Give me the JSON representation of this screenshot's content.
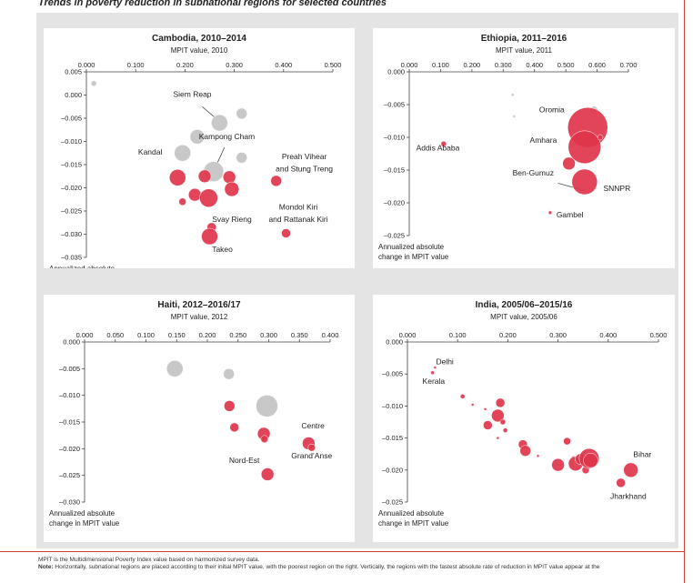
{
  "title": "Trends in poverty reduction in subnational regions for selected countries",
  "ylabel_text": "Annualized absolute change in MPIT value",
  "footnotes": {
    "line1": "MPIT is the Multidimensional Poverty Index value based on harmonized survey data.",
    "note_label": "Note:",
    "line2": "Horizontally, subnational regions are placed according to their initial MPIT value, with the poorest region on the right. Vertically, the regions with the fastest absolute rate of reduction in MPIT value appear at the"
  },
  "colors": {
    "significant": "#e0354b",
    "not_significant": "#c8c8c8",
    "text": "#222222"
  },
  "chart_data": [
    {
      "type": "scatter",
      "title": "Cambodia, 2010–2014",
      "xlabel": "MPIT value, 2010",
      "ylabel": [
        "Annualized absolute",
        "change in MPIT value"
      ],
      "xlim": [
        0,
        0.5
      ],
      "ylim": [
        -0.035,
        0.005
      ],
      "xticks": [
        "0.000",
        "0.100",
        "0.200",
        "0.300",
        "0.400",
        "0.500"
      ],
      "yticks": [
        "0.005",
        "0.000",
        "–0.005",
        "–0.010",
        "–0.015",
        "–0.020",
        "–0.025",
        "–0.030",
        "–0.035"
      ],
      "points": [
        {
          "x": 0.015,
          "y": 0.0025,
          "r": 3,
          "sig": false
        },
        {
          "x": 0.27,
          "y": -0.006,
          "r": 9,
          "sig": false
        },
        {
          "x": 0.315,
          "y": -0.004,
          "r": 6,
          "sig": false
        },
        {
          "x": 0.225,
          "y": -0.009,
          "r": 8,
          "sig": false
        },
        {
          "x": 0.195,
          "y": -0.0125,
          "r": 9,
          "sig": false
        },
        {
          "x": 0.258,
          "y": -0.0165,
          "r": 11,
          "sig": false
        },
        {
          "x": 0.315,
          "y": -0.0135,
          "r": 6,
          "sig": false
        },
        {
          "x": 0.185,
          "y": -0.0178,
          "r": 9,
          "sig": true
        },
        {
          "x": 0.24,
          "y": -0.0175,
          "r": 7,
          "sig": true
        },
        {
          "x": 0.29,
          "y": -0.0177,
          "r": 7,
          "sig": true
        },
        {
          "x": 0.295,
          "y": -0.0203,
          "r": 8,
          "sig": true
        },
        {
          "x": 0.22,
          "y": -0.0215,
          "r": 7,
          "sig": true
        },
        {
          "x": 0.248,
          "y": -0.0222,
          "r": 10,
          "sig": true
        },
        {
          "x": 0.195,
          "y": -0.023,
          "r": 4,
          "sig": true
        },
        {
          "x": 0.254,
          "y": -0.0285,
          "r": 5,
          "sig": true
        },
        {
          "x": 0.25,
          "y": -0.0305,
          "r": 9,
          "sig": true
        },
        {
          "x": 0.385,
          "y": -0.0185,
          "r": 6,
          "sig": true
        },
        {
          "x": 0.405,
          "y": -0.0298,
          "r": 5,
          "sig": true
        }
      ],
      "labels": [
        {
          "text": "Siem Reap",
          "x": 0.215,
          "y": -0.0004,
          "anchor": "middle"
        },
        {
          "text": "Kampong Cham",
          "x": 0.285,
          "y": -0.0095,
          "anchor": "middle"
        },
        {
          "text": "Kandal",
          "x": 0.105,
          "y": -0.0128,
          "anchor": "start"
        },
        {
          "text": "Preah Vihear",
          "x": 0.442,
          "y": -0.0138,
          "anchor": "middle"
        },
        {
          "text": "and Stung Treng",
          "x": 0.442,
          "y": -0.0165,
          "anchor": "middle"
        },
        {
          "text": "Mondol Kiri",
          "x": 0.43,
          "y": -0.0247,
          "anchor": "middle"
        },
        {
          "text": "and Rattanak Kiri",
          "x": 0.43,
          "y": -0.0274,
          "anchor": "middle"
        },
        {
          "text": "Svay Rieng",
          "x": 0.255,
          "y": -0.0274,
          "anchor": "start"
        },
        {
          "text": "Takeo",
          "x": 0.255,
          "y": -0.0338,
          "anchor": "start"
        }
      ],
      "leaders": [
        {
          "x1": 0.235,
          "y1": -0.0025,
          "x2": 0.268,
          "y2": -0.0055
        },
        {
          "x1": 0.28,
          "y1": -0.0113,
          "x2": 0.262,
          "y2": -0.0155
        }
      ]
    },
    {
      "type": "scatter",
      "title": "Ethiopia, 2011–2016",
      "xlabel": "MPIT value, 2011",
      "ylabel": [
        "Annualized absolute",
        "change in MPIT value"
      ],
      "xlim": [
        0,
        0.7
      ],
      "ylim": [
        -0.025,
        0.0
      ],
      "xticks": [
        "0.000",
        "0.100",
        "0.200",
        "0.300",
        "0.400",
        "0.500",
        "0.600",
        "0.700"
      ],
      "yticks": [
        "0.000",
        "–0.005",
        "–0.010",
        "–0.015",
        "–0.020",
        "–0.025"
      ],
      "points": [
        {
          "x": 0.33,
          "y": -0.0035,
          "r": 1.5,
          "sig": false
        },
        {
          "x": 0.335,
          "y": -0.0068,
          "r": 1.5,
          "sig": false
        },
        {
          "x": 0.59,
          "y": -0.0058,
          "r": 4,
          "sig": false
        },
        {
          "x": 0.57,
          "y": -0.0085,
          "r": 22,
          "sig": true
        },
        {
          "x": 0.56,
          "y": -0.0115,
          "r": 18,
          "sig": true
        },
        {
          "x": 0.61,
          "y": -0.01,
          "r": 3,
          "sig": true
        },
        {
          "x": 0.51,
          "y": -0.014,
          "r": 7,
          "sig": true
        },
        {
          "x": 0.56,
          "y": -0.0168,
          "r": 14,
          "sig": true
        },
        {
          "x": 0.11,
          "y": -0.011,
          "r": 3,
          "sig": true
        },
        {
          "x": 0.45,
          "y": -0.0215,
          "r": 2,
          "sig": true
        }
      ],
      "labels": [
        {
          "text": "Oromia",
          "x": 0.415,
          "y": -0.0062,
          "anchor": "start"
        },
        {
          "text": "Amhara",
          "x": 0.385,
          "y": -0.0108,
          "anchor": "start"
        },
        {
          "text": "Addis Ababa",
          "x": 0.022,
          "y": -0.012,
          "anchor": "start"
        },
        {
          "text": "Ben-Gumuz",
          "x": 0.33,
          "y": -0.0158,
          "anchor": "start"
        },
        {
          "text": "SNNPR",
          "x": 0.62,
          "y": -0.0182,
          "anchor": "start"
        },
        {
          "text": "Gambel",
          "x": 0.47,
          "y": -0.0222,
          "anchor": "start"
        }
      ],
      "leaders": [
        {
          "x1": 0.475,
          "y1": -0.017,
          "x2": 0.565,
          "y2": -0.0182
        }
      ]
    },
    {
      "type": "scatter",
      "title": "Haiti, 2012–2016/17",
      "xlabel": "MPIT value, 2012",
      "ylabel": [
        "Annualized absolute",
        "change in MPIT value"
      ],
      "xlim": [
        0,
        0.4
      ],
      "ylim": [
        -0.03,
        0.0
      ],
      "xticks": [
        "0.000",
        "0.050",
        "0.100",
        "0.150",
        "0.200",
        "0.250",
        "0.300",
        "0.350",
        "0.400"
      ],
      "yticks": [
        "0.000",
        "–0.005",
        "–0.010",
        "–0.015",
        "–0.020",
        "–0.025",
        "–0.030"
      ],
      "points": [
        {
          "x": 0.147,
          "y": -0.005,
          "r": 9,
          "sig": false
        },
        {
          "x": 0.235,
          "y": -0.006,
          "r": 6,
          "sig": false
        },
        {
          "x": 0.297,
          "y": -0.012,
          "r": 12,
          "sig": false
        },
        {
          "x": 0.236,
          "y": -0.012,
          "r": 6,
          "sig": true
        },
        {
          "x": 0.244,
          "y": -0.016,
          "r": 5,
          "sig": true
        },
        {
          "x": 0.292,
          "y": -0.0172,
          "r": 7,
          "sig": true
        },
        {
          "x": 0.293,
          "y": -0.0182,
          "r": 4,
          "sig": true
        },
        {
          "x": 0.365,
          "y": -0.019,
          "r": 7,
          "sig": true
        },
        {
          "x": 0.37,
          "y": -0.0198,
          "r": 4,
          "sig": true
        },
        {
          "x": 0.298,
          "y": -0.0248,
          "r": 7,
          "sig": true
        }
      ],
      "labels": [
        {
          "text": "Centre",
          "x": 0.372,
          "y": -0.0162,
          "anchor": "middle"
        },
        {
          "text": "Grand’Anse",
          "x": 0.37,
          "y": -0.0218,
          "anchor": "middle"
        },
        {
          "text": "Nord-Est",
          "x": 0.285,
          "y": -0.0227,
          "anchor": "end"
        }
      ],
      "leaders": []
    },
    {
      "type": "scatter",
      "title": "India, 2005/06–2015/16",
      "xlabel": "MPIT value, 2005/06",
      "ylabel": [
        "Annualized absolute",
        "change in MPIT value"
      ],
      "xlim": [
        0,
        0.5
      ],
      "ylim": [
        -0.025,
        0.0
      ],
      "xticks": [
        "0.000",
        "0.100",
        "0.200",
        "0.300",
        "0.400",
        "0.500"
      ],
      "yticks": [
        "0.000",
        "–0.005",
        "–0.010",
        "–0.015",
        "–0.020",
        "–0.025"
      ],
      "points": [
        {
          "x": 0.055,
          "y": -0.004,
          "r": 1.5,
          "sig": true
        },
        {
          "x": 0.05,
          "y": -0.0048,
          "r": 2,
          "sig": true
        },
        {
          "x": 0.11,
          "y": -0.0085,
          "r": 2.5,
          "sig": true
        },
        {
          "x": 0.13,
          "y": -0.0098,
          "r": 1.5,
          "sig": true
        },
        {
          "x": 0.155,
          "y": -0.0105,
          "r": 1.5,
          "sig": true
        },
        {
          "x": 0.185,
          "y": -0.0095,
          "r": 5,
          "sig": true
        },
        {
          "x": 0.18,
          "y": -0.0115,
          "r": 7,
          "sig": true
        },
        {
          "x": 0.19,
          "y": -0.0125,
          "r": 3,
          "sig": true
        },
        {
          "x": 0.195,
          "y": -0.0138,
          "r": 2.5,
          "sig": true
        },
        {
          "x": 0.16,
          "y": -0.013,
          "r": 5,
          "sig": true
        },
        {
          "x": 0.18,
          "y": -0.015,
          "r": 1.5,
          "sig": true
        },
        {
          "x": 0.23,
          "y": -0.016,
          "r": 5,
          "sig": true
        },
        {
          "x": 0.235,
          "y": -0.017,
          "r": 6,
          "sig": true
        },
        {
          "x": 0.26,
          "y": -0.0178,
          "r": 1.5,
          "sig": true
        },
        {
          "x": 0.3,
          "y": -0.0192,
          "r": 7,
          "sig": true
        },
        {
          "x": 0.318,
          "y": -0.0155,
          "r": 4,
          "sig": true
        },
        {
          "x": 0.33,
          "y": -0.018,
          "r": 1.5,
          "sig": true
        },
        {
          "x": 0.335,
          "y": -0.019,
          "r": 8,
          "sig": true
        },
        {
          "x": 0.345,
          "y": -0.0183,
          "r": 6,
          "sig": true
        },
        {
          "x": 0.355,
          "y": -0.02,
          "r": 4,
          "sig": true
        },
        {
          "x": 0.362,
          "y": -0.0182,
          "r": 11,
          "sig": true
        },
        {
          "x": 0.365,
          "y": -0.0185,
          "r": 8,
          "sig": true
        },
        {
          "x": 0.425,
          "y": -0.022,
          "r": 5,
          "sig": true
        },
        {
          "x": 0.445,
          "y": -0.02,
          "r": 8,
          "sig": true
        }
      ],
      "labels": [
        {
          "text": "Delhi",
          "x": 0.057,
          "y": -0.0035,
          "anchor": "start"
        },
        {
          "text": "Kerala",
          "x": 0.03,
          "y": -0.0065,
          "anchor": "start"
        },
        {
          "text": "Bihar",
          "x": 0.468,
          "y": -0.018,
          "anchor": "middle"
        },
        {
          "text": "Jharkhand",
          "x": 0.44,
          "y": -0.0245,
          "anchor": "middle"
        }
      ],
      "leaders": []
    }
  ]
}
